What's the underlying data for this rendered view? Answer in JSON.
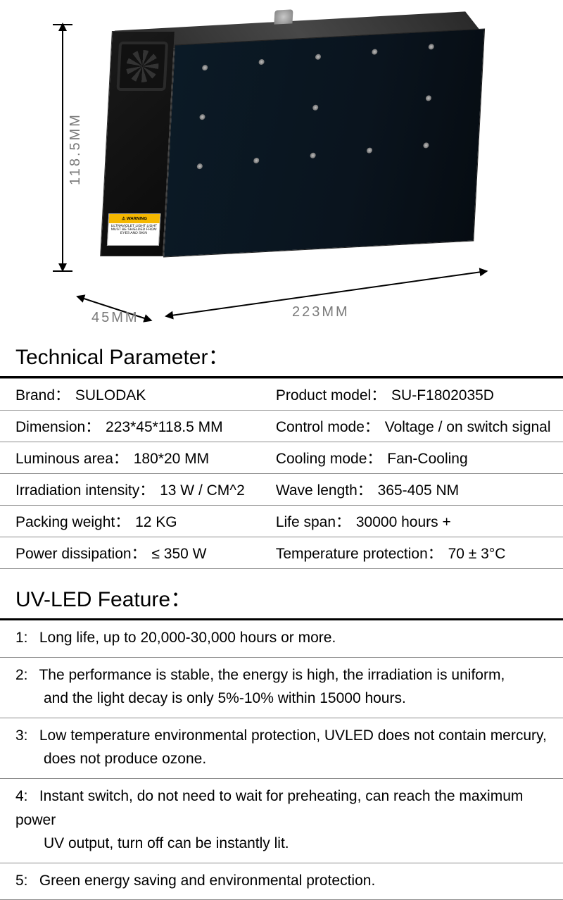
{
  "dimensions": {
    "height_label": "118.5MM",
    "depth_label": "45MM",
    "width_label": "223MM"
  },
  "warning": {
    "title": "⚠ WARNING",
    "body": "ULTRAVIOLET LIGHT LIGHT MUST BE SHIELDED FROM EYES AND SKIN"
  },
  "tech_title": "Technical Parameter",
  "specs": [
    {
      "l_label": "Brand",
      "l_value": "SULODAK",
      "r_label": "Product model",
      "r_value": "SU-F1802035D"
    },
    {
      "l_label": "Dimension",
      "l_value": "223*45*118.5 MM",
      "r_label": "Control mode",
      "r_value": "Voltage / on switch signal"
    },
    {
      "l_label": "Luminous area",
      "l_value": "180*20 MM",
      "r_label": "Cooling mode",
      "r_value": "Fan-Cooling"
    },
    {
      "l_label": "Irradiation intensity",
      "l_value": "13 W / CM^2",
      "r_label": "Wave length",
      "r_value": "365-405 NM"
    },
    {
      "l_label": "Packing weight",
      "l_value": "12 KG",
      "r_label": "Life span",
      "r_value": "30000 hours +"
    },
    {
      "l_label": "Power dissipation",
      "l_value": "≤ 350 W",
      "r_label": "Temperature protection",
      "r_value": "70 ± 3°C"
    }
  ],
  "feature_title": "UV-LED Feature",
  "features": [
    {
      "n": "1",
      "lines": [
        "Long life, up to 20,000-30,000 hours or more."
      ]
    },
    {
      "n": "2",
      "lines": [
        "The performance  is stable, the energy is high, the irradiation is uniform,",
        "and the light decay is only 5%-10% within 15000 hours."
      ]
    },
    {
      "n": "3",
      "lines": [
        "Low temperature environmental protection, UVLED does not contain mercury,",
        "does not produce ozone."
      ]
    },
    {
      "n": "4",
      "lines": [
        "Instant switch, do not need to wait for preheating, can reach the maximum power",
        "UV output, turn off can be instantly lit."
      ]
    },
    {
      "n": "5",
      "lines": [
        "Green energy saving and environmental protection."
      ]
    }
  ],
  "style": {
    "title_fontsize": 30,
    "cell_fontsize": 21,
    "border_color": "#8c8c8c",
    "heavy_border_color": "#000000",
    "dim_text_color": "#7a7a7a",
    "background": "#ffffff"
  }
}
